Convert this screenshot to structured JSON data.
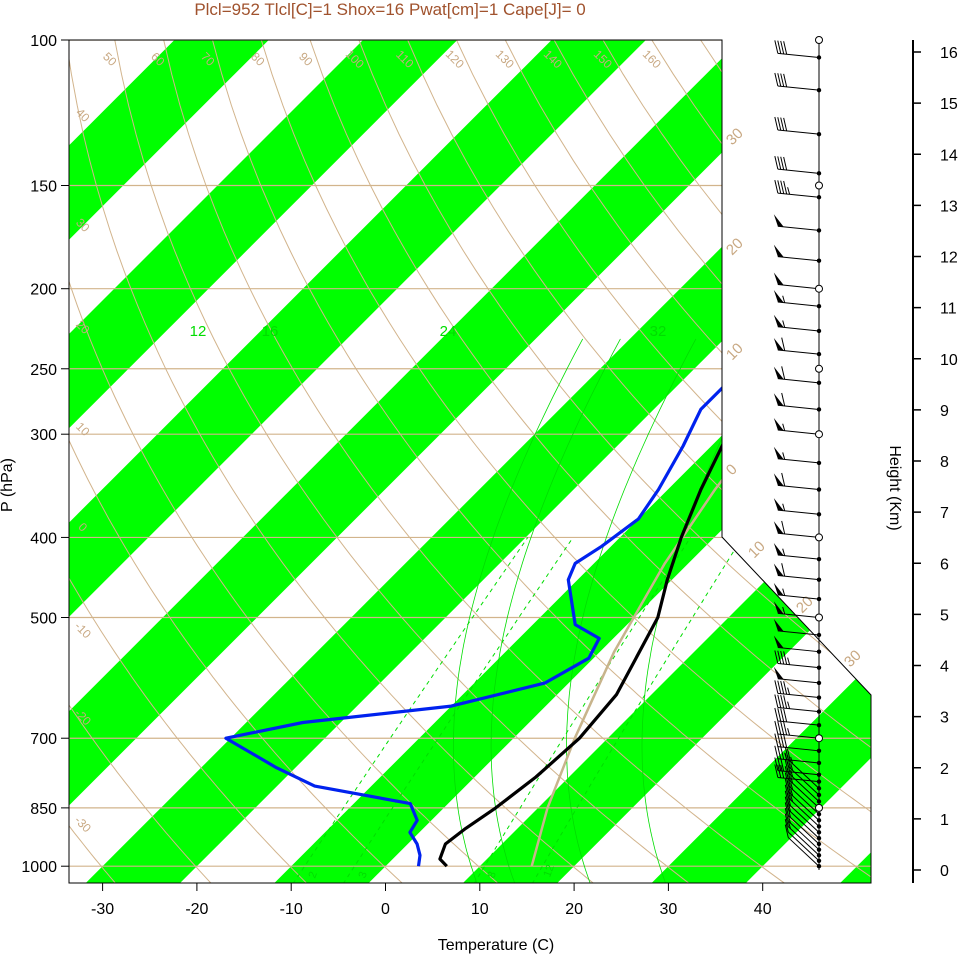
{
  "title": "Plcl=952 Tlcl[C]=1 Shox=16 Pwat[cm]=1 Cape[J]= 0",
  "colors": {
    "band": "#00ff00",
    "isobar": "#d2b48c",
    "adiabat": "#d2b48c",
    "mixing": "#00dd00",
    "temperature": "#000000",
    "dewpoint": "#0022ee",
    "parcel": "#c8b48c",
    "title": "#a0522d"
  },
  "chart_data": {
    "type": "line",
    "subtype": "skew-T log-P sounding diagram",
    "xlabel": "Temperature (C)",
    "ylabel": "P (hPa)",
    "y2label": "Height (Km)",
    "xlim": [
      -33,
      53
    ],
    "ylim": [
      1050,
      100
    ],
    "yscale": "log",
    "x_ticks": [
      -30,
      -20,
      -10,
      0,
      10,
      20,
      30,
      40
    ],
    "x_tick_labels": [
      "-30",
      "-20",
      "-10",
      "0",
      "10",
      "20",
      "30",
      "40"
    ],
    "y_ticks": [
      100,
      150,
      200,
      250,
      300,
      400,
      500,
      700,
      850,
      1000
    ],
    "y_tick_labels": [
      "100",
      "150",
      "200",
      "250",
      "300",
      "400",
      "500",
      "700",
      "850",
      "1000"
    ],
    "height_ticks": [
      0,
      1,
      2,
      3,
      4,
      5,
      6,
      7,
      8,
      9,
      10,
      11,
      12,
      13,
      14,
      15,
      16
    ],
    "height_tick_labels": [
      "0",
      "1",
      "2",
      "3",
      "4",
      "5",
      "6",
      "7",
      "8",
      "9",
      "10",
      "11",
      "12",
      "13",
      "14",
      "15",
      "16"
    ],
    "dry_adiabat_labels": [
      "50",
      "60",
      "70",
      "80",
      "90",
      "100",
      "110",
      "120",
      "130",
      "140",
      "150",
      "160"
    ],
    "dry_adiabat_side_labels": [
      "40",
      "30",
      "20",
      "10",
      "0",
      "-10",
      "-20",
      "-30"
    ],
    "moist_adiabat_labels": [
      "30",
      "20",
      "10",
      "0",
      "10",
      "20",
      "30"
    ],
    "mixing_ratio_labels": [
      "12",
      "16",
      "24",
      "32"
    ],
    "mixing_ratio_bottom_labels": [
      "2",
      "3",
      "8",
      "12"
    ],
    "series": [
      {
        "name": "Temperature",
        "color": "#000000",
        "points": [
          [
            6.5,
            1000
          ],
          [
            5.0,
            980
          ],
          [
            4.0,
            940
          ],
          [
            4.5,
            900
          ],
          [
            5.5,
            850
          ],
          [
            6.5,
            780
          ],
          [
            7.0,
            700
          ],
          [
            6.3,
            620
          ],
          [
            4.5,
            560
          ],
          [
            2.5,
            500
          ],
          [
            -0.5,
            450
          ],
          [
            -3.5,
            400
          ],
          [
            -6.5,
            350
          ],
          [
            -9.5,
            300
          ],
          [
            -11.0,
            270
          ],
          [
            -10.5,
            250
          ],
          [
            -8.5,
            230
          ],
          [
            -5.5,
            210
          ],
          [
            -2.0,
            190
          ],
          [
            2.0,
            170
          ],
          [
            5.0,
            160
          ],
          [
            7.5,
            150
          ],
          [
            10.0,
            140
          ],
          [
            12.0,
            125
          ],
          [
            14.0,
            115
          ],
          [
            15.5,
            108
          ],
          [
            17.0,
            101
          ]
        ]
      },
      {
        "name": "Dewpoint",
        "color": "#0022ee",
        "points": [
          [
            3.5,
            1000
          ],
          [
            2.5,
            970
          ],
          [
            1.0,
            940
          ],
          [
            -1.0,
            910
          ],
          [
            -1.5,
            880
          ],
          [
            -4.0,
            840
          ],
          [
            -16.0,
            800
          ],
          [
            -22.0,
            760
          ],
          [
            -30.5,
            700
          ],
          [
            -24.0,
            670
          ],
          [
            -10.0,
            640
          ],
          [
            -2.5,
            600
          ],
          [
            -0.5,
            560
          ],
          [
            -1.5,
            530
          ],
          [
            -5.5,
            510
          ],
          [
            -11.0,
            450
          ],
          [
            -12.0,
            430
          ],
          [
            -11.0,
            410
          ],
          [
            -10.0,
            380
          ],
          [
            -11.0,
            350
          ],
          [
            -13.0,
            310
          ],
          [
            -15.0,
            280
          ],
          [
            -15.0,
            250
          ],
          [
            -16.5,
            235
          ],
          [
            -18.5,
            220
          ],
          [
            -21.5,
            205
          ],
          [
            -23.0,
            195
          ],
          [
            -23.0,
            180
          ],
          [
            -22.0,
            165
          ],
          [
            -19.5,
            150
          ],
          [
            -15.0,
            130
          ],
          [
            -11.0,
            115
          ],
          [
            -6.0,
            103
          ]
        ]
      },
      {
        "name": "Parcel",
        "color": "#c8b48c",
        "points": [
          [
            15.5,
            1000
          ],
          [
            11.0,
            850
          ],
          [
            6.5,
            700
          ],
          [
            1.5,
            550
          ],
          [
            -2.5,
            430
          ],
          [
            -5.0,
            350
          ],
          [
            -7.0,
            280
          ],
          [
            -7.5,
            232
          ],
          [
            -3.0,
            190
          ],
          [
            7.0,
            140
          ],
          [
            14.0,
            115
          ],
          [
            17.0,
            101
          ]
        ]
      }
    ],
    "wind_barbs": {
      "pressures": [
        1000,
        985,
        970,
        955,
        940,
        925,
        910,
        895,
        880,
        865,
        850,
        835,
        820,
        805,
        790,
        775,
        750,
        725,
        700,
        675,
        650,
        625,
        600,
        575,
        550,
        525,
        500,
        475,
        450,
        425,
        400,
        375,
        350,
        325,
        300,
        280,
        260,
        240,
        225,
        210,
        200,
        185,
        170,
        155,
        145,
        130,
        115,
        105
      ],
      "speeds_kt": [
        10,
        10,
        15,
        15,
        20,
        20,
        20,
        25,
        25,
        25,
        25,
        25,
        25,
        25,
        30,
        30,
        35,
        40,
        45,
        40,
        45,
        45,
        50,
        45,
        50,
        50,
        55,
        55,
        60,
        55,
        60,
        55,
        60,
        55,
        55,
        60,
        60,
        60,
        55,
        55,
        50,
        50,
        50,
        45,
        40,
        40,
        40,
        40
      ]
    },
    "grid": true
  }
}
